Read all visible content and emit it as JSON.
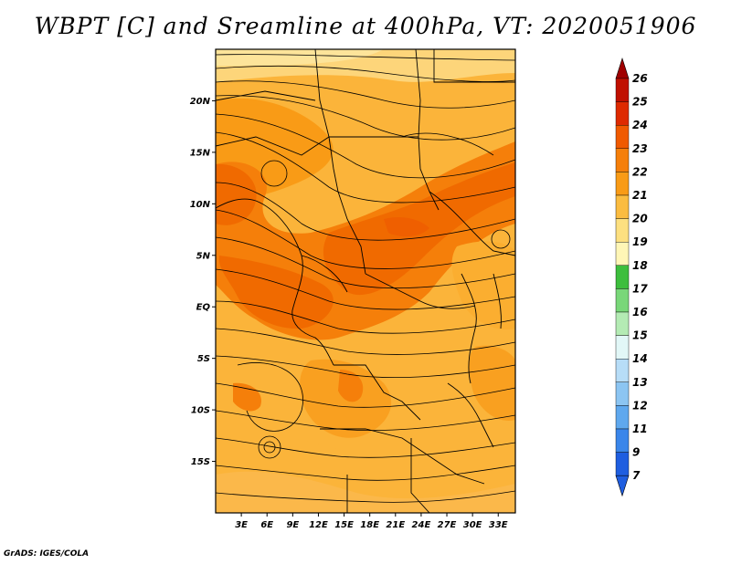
{
  "title": "WBPT [C] and Sreamline at 400hPa, VT: 2020051906",
  "credit": "GrADS: IGES/COLA",
  "map": {
    "lon_range": [
      0,
      35
    ],
    "lat_range": [
      -20,
      25
    ],
    "lon_ticks": [
      {
        "value": 3,
        "label": "3E"
      },
      {
        "value": 6,
        "label": "6E"
      },
      {
        "value": 9,
        "label": "9E"
      },
      {
        "value": 12,
        "label": "12E"
      },
      {
        "value": 15,
        "label": "15E"
      },
      {
        "value": 18,
        "label": "18E"
      },
      {
        "value": 21,
        "label": "21E"
      },
      {
        "value": 24,
        "label": "24E"
      },
      {
        "value": 27,
        "label": "27E"
      },
      {
        "value": 30,
        "label": "30E"
      },
      {
        "value": 33,
        "label": "33E"
      }
    ],
    "lat_ticks": [
      {
        "value": 20,
        "label": "20N"
      },
      {
        "value": 15,
        "label": "15N"
      },
      {
        "value": 10,
        "label": "10N"
      },
      {
        "value": 5,
        "label": "5N"
      },
      {
        "value": 0,
        "label": "EQ"
      },
      {
        "value": -5,
        "label": "5S"
      },
      {
        "value": -10,
        "label": "10S"
      },
      {
        "value": -15,
        "label": "15S"
      }
    ]
  },
  "colorbar": {
    "levels": [
      {
        "label": "26",
        "color": "#a50000"
      },
      {
        "label": "25",
        "color": "#c01000"
      },
      {
        "label": "24",
        "color": "#de2a00"
      },
      {
        "label": "23",
        "color": "#f05a00"
      },
      {
        "label": "22",
        "color": "#f57f0a"
      },
      {
        "label": "21",
        "color": "#f99b16"
      },
      {
        "label": "20",
        "color": "#fbbc40"
      },
      {
        "label": "19",
        "color": "#fde080"
      },
      {
        "label": "18",
        "color": "#fff6b6"
      },
      {
        "label": "17",
        "color": "#3dbe3d"
      },
      {
        "label": "16",
        "color": "#79d779"
      },
      {
        "label": "15",
        "color": "#b4ebb4"
      },
      {
        "label": "14",
        "color": "#e2f7f7"
      },
      {
        "label": "13",
        "color": "#b7ddf7"
      },
      {
        "label": "12",
        "color": "#8cc5f2"
      },
      {
        "label": "11",
        "color": "#5fa8ee"
      },
      {
        "label": "9",
        "color": "#3a86ea"
      },
      {
        "label": "7",
        "color": "#1f5ee0"
      }
    ],
    "top_arrow_color": "#a00000",
    "bottom_arrow_color": "#1f5ee0"
  }
}
